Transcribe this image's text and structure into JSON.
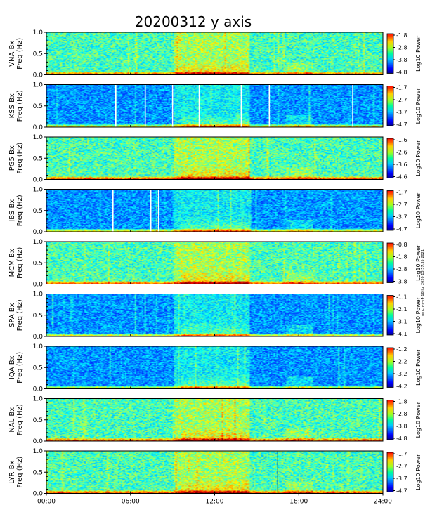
{
  "chart_data": {
    "type": "heatmap",
    "title": "20200312 y axis",
    "x_ticks": [
      "00:00",
      "06:00",
      "12:00",
      "18:00",
      "24:00"
    ],
    "x_range_hours": [
      0,
      24
    ],
    "y_ticks": [
      "0.0",
      "0.5",
      "1.0"
    ],
    "y_range_hz": [
      0,
      1.0
    ],
    "colorbar_label": "Log10 Power",
    "side_stamp": "nmcn–s–r4 18 Jul 2020 13:57:35 2021",
    "panels": [
      {
        "ylabel": "VNA Bx",
        "ylabel2": "Freq (Hz)",
        "cb_ticks": [
          "-1.8",
          "-2.8",
          "-3.8",
          "-4.8"
        ],
        "colormap": "jet",
        "background": "noise"
      },
      {
        "ylabel": "KSS Bx",
        "ylabel2": "Freq (Hz)",
        "cb_ticks": [
          "-1.7",
          "-2.7",
          "-3.7",
          "-4.7"
        ],
        "colormap": "jet",
        "background": "dark",
        "white_gaps_hours": [
          4.95,
          7.05,
          9.0,
          10.9,
          13.9,
          15.9,
          21.85
        ]
      },
      {
        "ylabel": "PG5 Bx",
        "ylabel2": "Freq (Hz)",
        "cb_ticks": [
          "-1.6",
          "-2.6",
          "-3.6",
          "-4.6"
        ],
        "colormap": "jet",
        "background": "noise"
      },
      {
        "ylabel": "JBS Bx",
        "ylabel2": "Freq (Hz)",
        "cb_ticks": [
          "-1.7",
          "-2.7",
          "-3.7",
          "-4.7"
        ],
        "colormap": "jet",
        "background": "dark",
        "white_gaps_hours": [
          4.75,
          7.45,
          8.0
        ]
      },
      {
        "ylabel": "MCM Bx",
        "ylabel2": "Freq (Hz)",
        "cb_ticks": [
          "-0.8",
          "-1.8",
          "-2.8",
          "-3.8"
        ],
        "colormap": "jet",
        "background": "noise"
      },
      {
        "ylabel": "SPA Bx",
        "ylabel2": "Freq (Hz)",
        "cb_ticks": [
          "-1.1",
          "-2.1",
          "-3.1",
          "-4.1"
        ],
        "colormap": "jet",
        "background": "dark"
      },
      {
        "ylabel": "IQA Bx",
        "ylabel2": "Freq (Hz)",
        "cb_ticks": [
          "-1.2",
          "-2.2",
          "-3.2",
          "-4.2"
        ],
        "colormap": "jet",
        "background": "dark"
      },
      {
        "ylabel": "NAL Bx",
        "ylabel2": "Freq (Hz)",
        "cb_ticks": [
          "-1.8",
          "-2.8",
          "-3.8",
          "-4.8"
        ],
        "colormap": "jet",
        "background": "noise"
      },
      {
        "ylabel": "LYR Bx",
        "ylabel2": "Freq (Hz)",
        "cb_ticks": [
          "-1.7",
          "-2.7",
          "-3.7",
          "-4.7"
        ],
        "colormap": "jet",
        "background": "noise",
        "dark_line_hours": [
          16.5
        ]
      }
    ]
  }
}
